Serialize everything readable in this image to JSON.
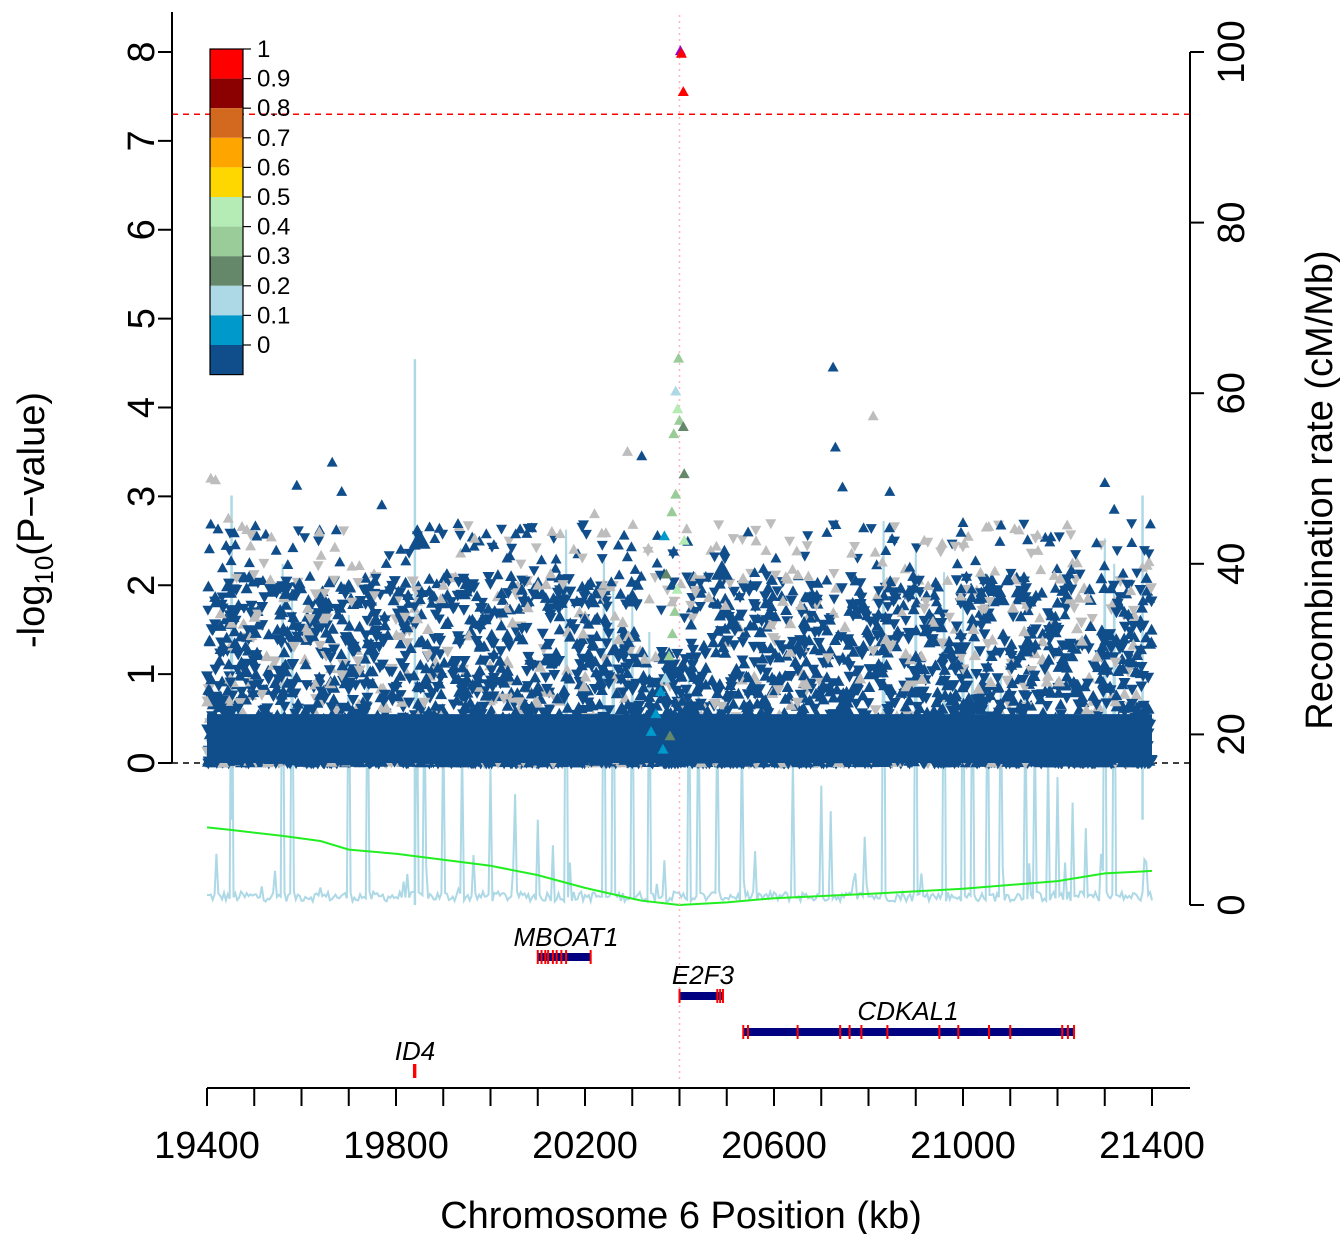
{
  "chart_data": {
    "type": "scatter",
    "xlabel": "Chromosome 6 Position (kb)",
    "ylabel_main": "-log",
    "ylabel_sub": "10",
    "ylabel_tail": "(P−value)",
    "ylabel_right": "Recombination rate (cM/Mb)",
    "xlim": [
      19400,
      21400
    ],
    "ylim": [
      0,
      8
    ],
    "ylim_right": [
      0,
      100
    ],
    "x_ticks": [
      "19400",
      "19800",
      "20200",
      "20600",
      "21000",
      "21400"
    ],
    "y_ticks": [
      "0",
      "1",
      "2",
      "3",
      "4",
      "5",
      "6",
      "7",
      "8"
    ],
    "y2_ticks": [
      "0",
      "20",
      "40",
      "60",
      "80",
      "100"
    ],
    "significance_line": 7.3,
    "baseline": 0,
    "lead_snp_position": 20400,
    "legend": {
      "labels": [
        "1",
        "0.9",
        "0.8",
        "0.7",
        "0.6",
        "0.5",
        "0.4",
        "0.3",
        "0.2",
        "0.1",
        "0"
      ],
      "colors": [
        "#FF0000",
        "#8B0000",
        "#D2691E",
        "#FFA500",
        "#FFD700",
        "#B5EBB5",
        "#99CC99",
        "#66886A",
        "#ADD8E6",
        "#0099CC",
        "#104E8B"
      ]
    },
    "colors": {
      "ld0": "#104E8B",
      "ld1": "#0099CC",
      "ld2": "#ADD8E6",
      "ld3": "#66886A",
      "ld4": "#99CC99",
      "ld5": "#B5EBB5",
      "ld_gray": "#BDBDBD",
      "lead": "#9900CC",
      "red": "#FF0000",
      "recomb": "#ADD8E6",
      "cumulative": "#22EE22",
      "gene": "#000080",
      "exon": "#FF0000",
      "sig_line": "#FF0000"
    },
    "highlight_points": [
      {
        "x": 20402,
        "y": 8.01,
        "color": "lead"
      },
      {
        "x": 20404,
        "y": 7.98,
        "color": "red"
      },
      {
        "x": 20408,
        "y": 7.55,
        "color": "red"
      },
      {
        "x": 20398,
        "y": 4.55,
        "color": "ld4"
      },
      {
        "x": 20392,
        "y": 4.18,
        "color": "ld2"
      },
      {
        "x": 20396,
        "y": 3.98,
        "color": "ld5"
      },
      {
        "x": 20400,
        "y": 3.85,
        "color": "ld4"
      },
      {
        "x": 20408,
        "y": 3.78,
        "color": "ld3"
      },
      {
        "x": 20388,
        "y": 3.7,
        "color": "ld4"
      },
      {
        "x": 20410,
        "y": 3.25,
        "color": "ld3"
      },
      {
        "x": 20392,
        "y": 3.02,
        "color": "ld4"
      },
      {
        "x": 20384,
        "y": 2.82,
        "color": "ld4"
      },
      {
        "x": 20368,
        "y": 2.55,
        "color": "ld1"
      },
      {
        "x": 20410,
        "y": 2.5,
        "color": "ld5"
      },
      {
        "x": 20372,
        "y": 2.12,
        "color": "ld3"
      },
      {
        "x": 20395,
        "y": 1.95,
        "color": "ld5"
      },
      {
        "x": 20390,
        "y": 1.7,
        "color": "ld4"
      },
      {
        "x": 20385,
        "y": 1.45,
        "color": "ld4"
      },
      {
        "x": 20378,
        "y": 1.2,
        "color": "ld4"
      },
      {
        "x": 20370,
        "y": 0.95,
        "color": "ld2"
      },
      {
        "x": 20360,
        "y": 0.8,
        "color": "ld1"
      },
      {
        "x": 20350,
        "y": 0.55,
        "color": "ld1"
      },
      {
        "x": 20340,
        "y": 0.35,
        "color": "ld1"
      },
      {
        "x": 20380,
        "y": 0.3,
        "color": "ld3"
      },
      {
        "x": 20365,
        "y": 0.15,
        "color": "ld1"
      }
    ],
    "peak_points": [
      {
        "x": 19408,
        "y": 3.2
      },
      {
        "x": 19418,
        "y": 3.18
      },
      {
        "x": 19445,
        "y": 2.75
      },
      {
        "x": 19460,
        "y": 2.45
      },
      {
        "x": 19590,
        "y": 3.12
      },
      {
        "x": 19665,
        "y": 3.38
      },
      {
        "x": 19685,
        "y": 3.05
      },
      {
        "x": 19770,
        "y": 2.9
      },
      {
        "x": 19845,
        "y": 2.62
      },
      {
        "x": 19850,
        "y": 2.5
      },
      {
        "x": 20035,
        "y": 2.3
      },
      {
        "x": 20130,
        "y": 2.6
      },
      {
        "x": 20220,
        "y": 2.8
      },
      {
        "x": 20290,
        "y": 3.5
      },
      {
        "x": 20320,
        "y": 3.45
      },
      {
        "x": 20490,
        "y": 2.15
      },
      {
        "x": 20725,
        "y": 4.45
      },
      {
        "x": 20730,
        "y": 3.55
      },
      {
        "x": 20745,
        "y": 3.1
      },
      {
        "x": 20810,
        "y": 3.9
      },
      {
        "x": 20845,
        "y": 3.05
      },
      {
        "x": 21000,
        "y": 2.7
      },
      {
        "x": 21300,
        "y": 3.15
      },
      {
        "x": 21320,
        "y": 2.85
      }
    ],
    "genes": [
      {
        "name": "MBOAT1",
        "start": 20100,
        "end": 20212,
        "exons": [
          20100,
          20108,
          20116,
          20122,
          20132,
          20140,
          20150,
          20160,
          20212
        ]
      },
      {
        "name": "E2F3",
        "start": 20400,
        "end": 20492,
        "exons": [
          20400,
          20480,
          20486,
          20492
        ]
      },
      {
        "name": "CDKAL1",
        "start": 20535,
        "end": 21235,
        "exons": [
          20535,
          20545,
          20650,
          20740,
          20760,
          20785,
          20840,
          20950,
          20990,
          21055,
          21100,
          21210,
          21222,
          21235
        ]
      },
      {
        "name": "ID4",
        "start": 19838,
        "end": 19841,
        "exons": [
          19838,
          19841
        ]
      }
    ]
  }
}
